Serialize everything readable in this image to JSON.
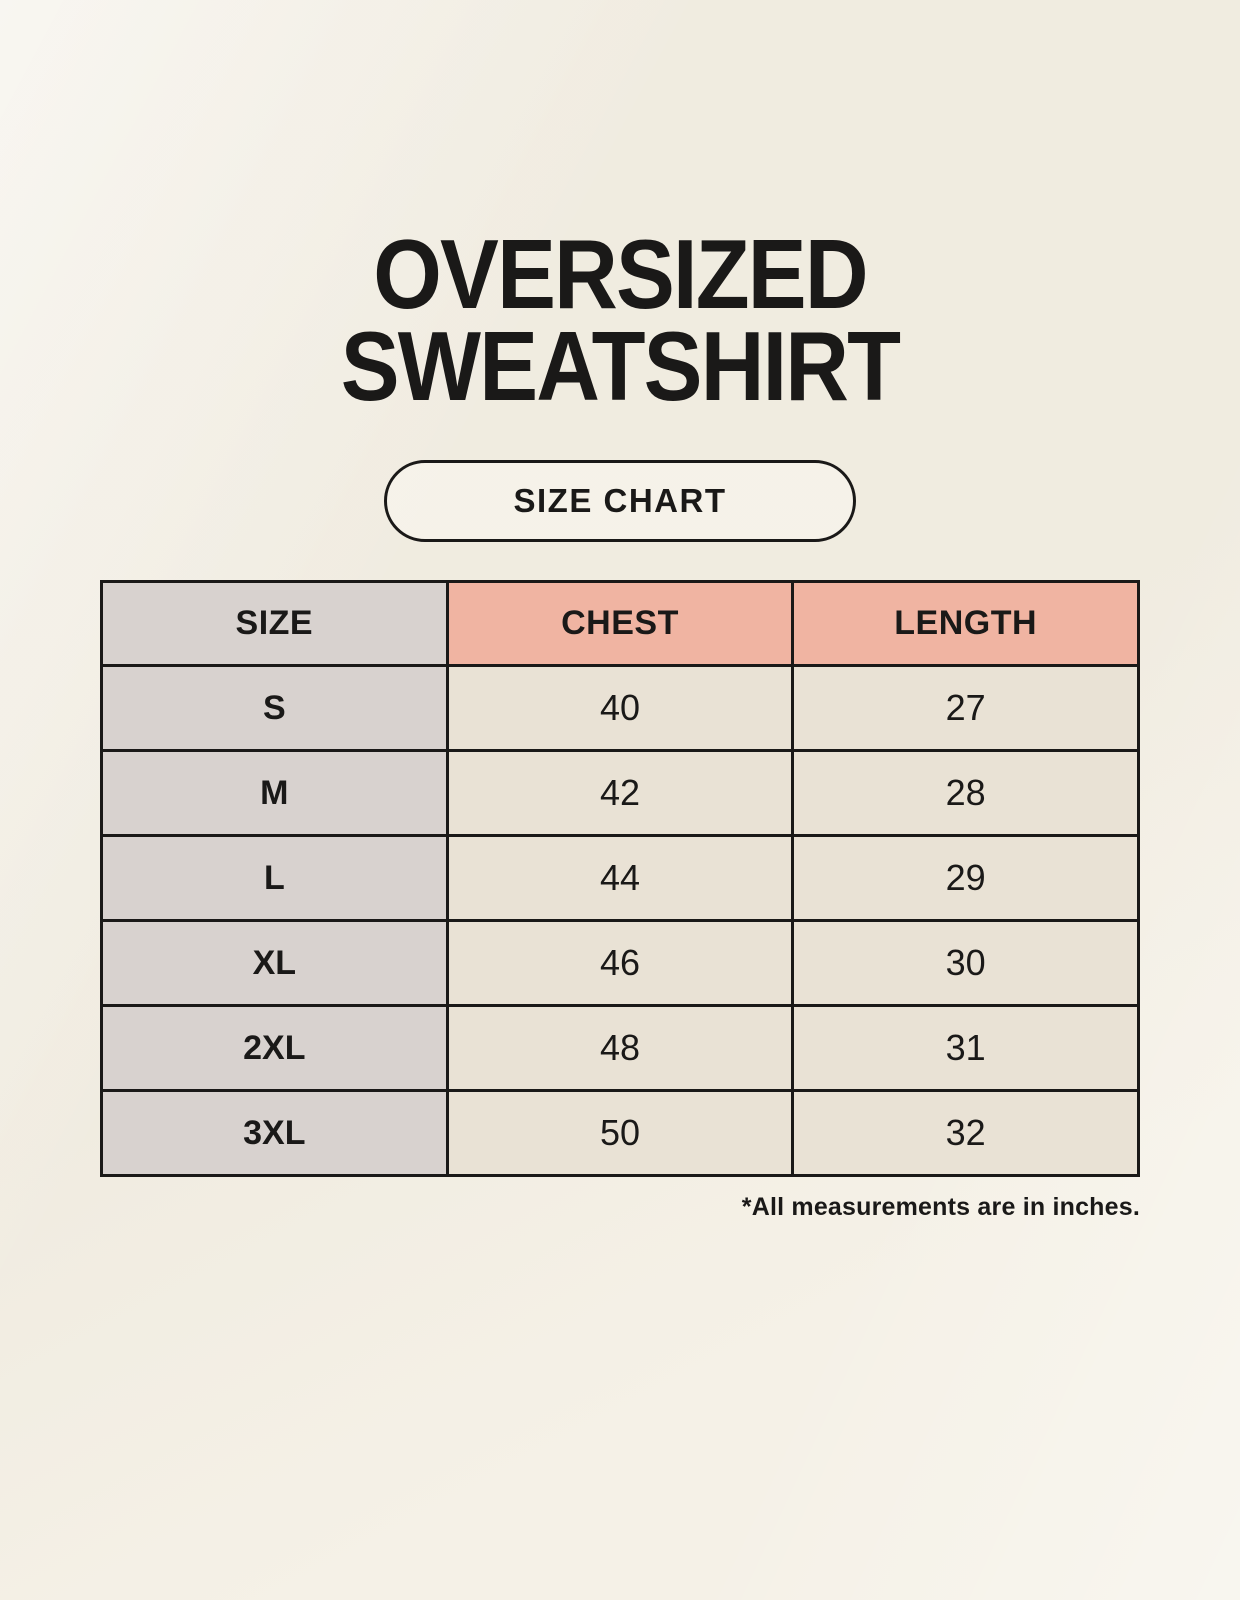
{
  "header": {
    "title_line1": "OVERSIZED",
    "title_line2": "SWEATSHIRT",
    "badge_label": "SIZE CHART"
  },
  "footnote": "*All measurements are in inches.",
  "chart_data": {
    "type": "table",
    "title": "OVERSIZED SWEATSHIRT",
    "subtitle": "SIZE CHART",
    "columns": [
      "SIZE",
      "CHEST",
      "LENGTH"
    ],
    "rows": [
      {
        "size": "S",
        "chest": "40",
        "length": "27"
      },
      {
        "size": "M",
        "chest": "42",
        "length": "28"
      },
      {
        "size": "L",
        "chest": "44",
        "length": "29"
      },
      {
        "size": "XL",
        "chest": "46",
        "length": "30"
      },
      {
        "size": "2XL",
        "chest": "48",
        "length": "31"
      },
      {
        "size": "3XL",
        "chest": "50",
        "length": "32"
      }
    ],
    "units_note": "*All measurements are in inches."
  },
  "colors": {
    "page_background": "#f5f1e7",
    "size_column_bg": "#d8d2cf",
    "measure_header_bg": "#f0b4a2",
    "data_cell_bg": "#e9e2d5",
    "border": "#1a1918",
    "text": "#1a1918"
  }
}
